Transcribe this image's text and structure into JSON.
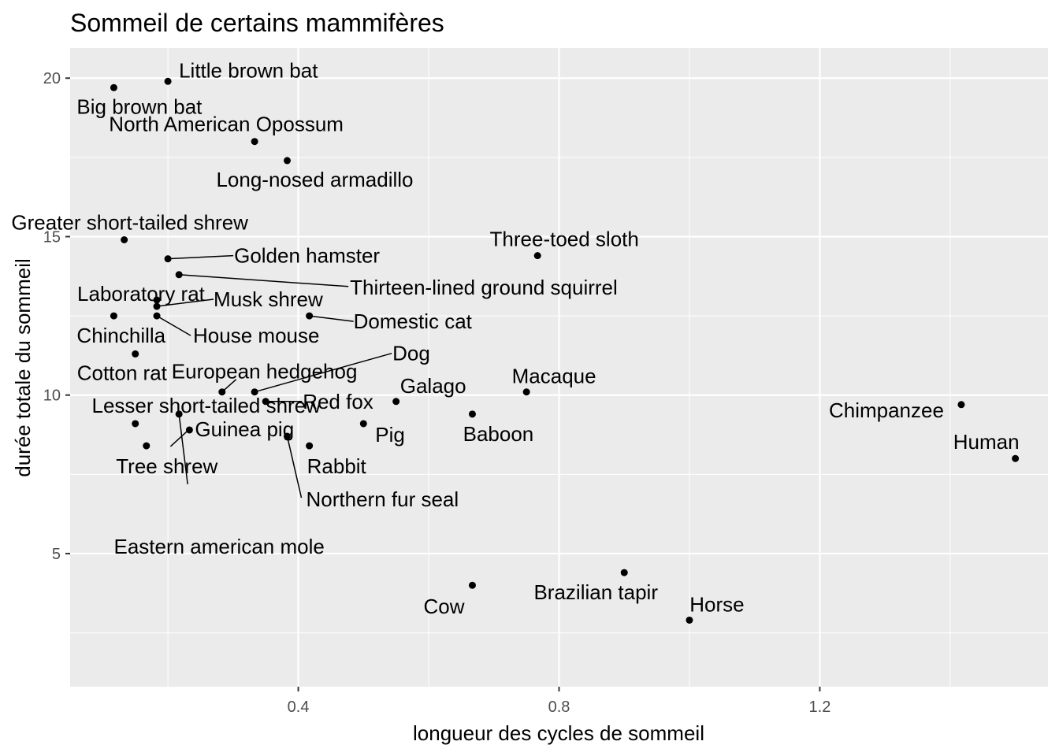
{
  "chart_data": {
    "type": "scatter",
    "title": "Sommeil de certains mammifères",
    "xlabel": "longueur des cycles de sommeil",
    "ylabel": "durée totale du sommeil",
    "xlim": [
      0.05,
      1.55
    ],
    "ylim": [
      0.8,
      20.95
    ],
    "x_ticks": [
      0.4,
      0.8,
      1.2
    ],
    "y_ticks": [
      5,
      10,
      15,
      20
    ],
    "x_tick_labels": [
      "0.4",
      "0.8",
      "1.2"
    ],
    "y_tick_labels": [
      "5",
      "10",
      "15",
      "20"
    ],
    "grid": true,
    "points": [
      {
        "name": "Little brown bat",
        "x": 0.2,
        "y": 19.9
      },
      {
        "name": "Big brown bat",
        "x": 0.117,
        "y": 19.7
      },
      {
        "name": "North American Opossum",
        "x": 0.333,
        "y": 18.0
      },
      {
        "name": "Long-nosed armadillo",
        "x": 0.383,
        "y": 17.4
      },
      {
        "name": "Greater short-tailed shrew",
        "x": 0.133,
        "y": 14.9
      },
      {
        "name": "Golden hamster",
        "x": 0.2,
        "y": 14.3
      },
      {
        "name": "Three-toed sloth",
        "x": 0.767,
        "y": 14.4
      },
      {
        "name": "Thirteen-lined ground squirrel",
        "x": 0.217,
        "y": 13.8
      },
      {
        "name": "Laboratory rat",
        "x": 0.183,
        "y": 13.0
      },
      {
        "name": "Musk shrew",
        "x": 0.183,
        "y": 12.8
      },
      {
        "name": "Chinchilla",
        "x": 0.117,
        "y": 12.5
      },
      {
        "name": "House mouse",
        "x": 0.183,
        "y": 12.5
      },
      {
        "name": "Domestic cat",
        "x": 0.417,
        "y": 12.5
      },
      {
        "name": "Cotton rat",
        "x": 0.15,
        "y": 11.3
      },
      {
        "name": "European hedgehog",
        "x": 0.283,
        "y": 10.1
      },
      {
        "name": "Dog",
        "x": 0.333,
        "y": 10.1
      },
      {
        "name": "Macaque",
        "x": 0.75,
        "y": 10.1
      },
      {
        "name": "Galago",
        "x": 0.55,
        "y": 9.8
      },
      {
        "name": "Red fox",
        "x": 0.35,
        "y": 9.8
      },
      {
        "name": "Lesser short-tailed shrew",
        "x": 0.15,
        "y": 9.1
      },
      {
        "name": "Chimpanzee",
        "x": 1.417,
        "y": 9.7
      },
      {
        "name": "Baboon",
        "x": 0.667,
        "y": 9.4
      },
      {
        "name": "Eastern american mole",
        "x": 0.217,
        "y": 9.4
      },
      {
        "name": "Pig",
        "x": 0.5,
        "y": 9.1
      },
      {
        "name": "Guinea pig",
        "x": 0.233,
        "y": 8.9
      },
      {
        "name": "Northern fur seal",
        "x": 0.383,
        "y": 8.7
      },
      {
        "name": "Tree shrew",
        "x": 0.167,
        "y": 8.4
      },
      {
        "name": "Rabbit",
        "x": 0.417,
        "y": 8.4
      },
      {
        "name": "Human",
        "x": 1.5,
        "y": 8.0
      },
      {
        "name": "Brazilian tapir",
        "x": 0.9,
        "y": 4.4
      },
      {
        "name": "Cow",
        "x": 0.667,
        "y": 4.0
      },
      {
        "name": "Horse",
        "x": 1.0,
        "y": 2.9
      }
    ]
  }
}
